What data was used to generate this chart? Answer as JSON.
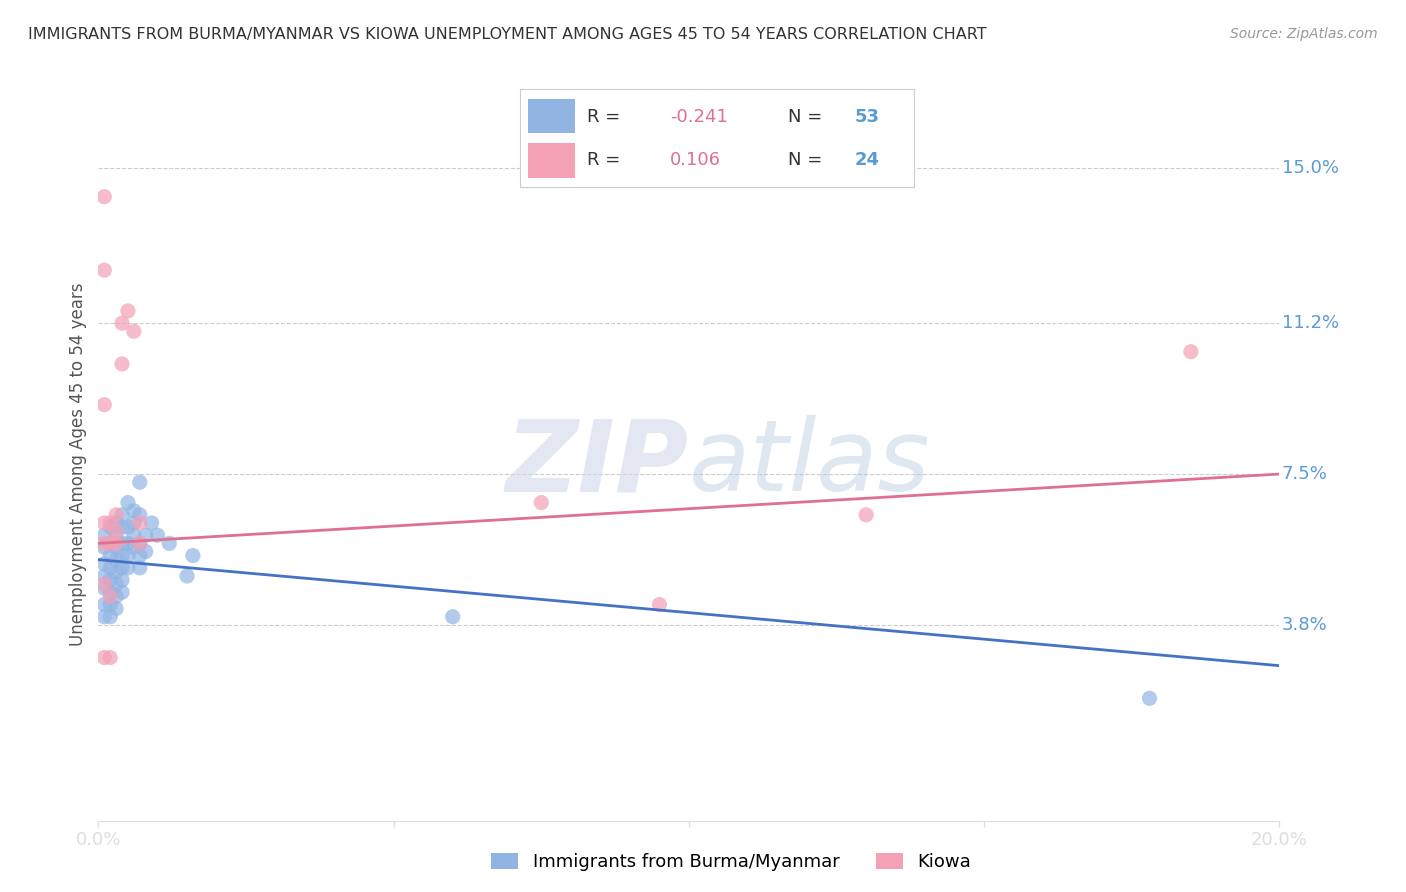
{
  "title": "IMMIGRANTS FROM BURMA/MYANMAR VS KIOWA UNEMPLOYMENT AMONG AGES 45 TO 54 YEARS CORRELATION CHART",
  "source": "Source: ZipAtlas.com",
  "ylabel": "Unemployment Among Ages 45 to 54 years",
  "xlim": [
    0,
    0.2
  ],
  "ylim": [
    -0.01,
    0.165
  ],
  "ytick_right_vals": [
    0.038,
    0.075,
    0.112,
    0.15
  ],
  "ytick_right_labels": [
    "3.8%",
    "7.5%",
    "11.2%",
    "15.0%"
  ],
  "series1_color": "#92b4e3",
  "series2_color": "#f4a0b5",
  "series1_name": "Immigrants from Burma/Myanmar",
  "series2_name": "Kiowa",
  "watermark_zip": "ZIP",
  "watermark_atlas": "atlas",
  "blue_line_x": [
    0.0,
    0.2
  ],
  "blue_line_y": [
    0.054,
    0.028
  ],
  "pink_line_x": [
    0.0,
    0.2
  ],
  "pink_line_y": [
    0.058,
    0.075
  ],
  "series1_points": [
    [
      0.001,
      0.06
    ],
    [
      0.001,
      0.057
    ],
    [
      0.001,
      0.053
    ],
    [
      0.001,
      0.05
    ],
    [
      0.001,
      0.047
    ],
    [
      0.001,
      0.043
    ],
    [
      0.001,
      0.04
    ],
    [
      0.002,
      0.062
    ],
    [
      0.002,
      0.058
    ],
    [
      0.002,
      0.055
    ],
    [
      0.002,
      0.052
    ],
    [
      0.002,
      0.049
    ],
    [
      0.002,
      0.046
    ],
    [
      0.002,
      0.043
    ],
    [
      0.002,
      0.04
    ],
    [
      0.003,
      0.063
    ],
    [
      0.003,
      0.06
    ],
    [
      0.003,
      0.057
    ],
    [
      0.003,
      0.054
    ],
    [
      0.003,
      0.051
    ],
    [
      0.003,
      0.048
    ],
    [
      0.003,
      0.045
    ],
    [
      0.003,
      0.042
    ],
    [
      0.004,
      0.065
    ],
    [
      0.004,
      0.062
    ],
    [
      0.004,
      0.058
    ],
    [
      0.004,
      0.055
    ],
    [
      0.004,
      0.052
    ],
    [
      0.004,
      0.049
    ],
    [
      0.004,
      0.046
    ],
    [
      0.005,
      0.068
    ],
    [
      0.005,
      0.062
    ],
    [
      0.005,
      0.058
    ],
    [
      0.005,
      0.055
    ],
    [
      0.005,
      0.052
    ],
    [
      0.006,
      0.066
    ],
    [
      0.006,
      0.063
    ],
    [
      0.006,
      0.06
    ],
    [
      0.006,
      0.057
    ],
    [
      0.007,
      0.073
    ],
    [
      0.007,
      0.065
    ],
    [
      0.007,
      0.058
    ],
    [
      0.007,
      0.055
    ],
    [
      0.007,
      0.052
    ],
    [
      0.008,
      0.06
    ],
    [
      0.008,
      0.056
    ],
    [
      0.009,
      0.063
    ],
    [
      0.01,
      0.06
    ],
    [
      0.012,
      0.058
    ],
    [
      0.015,
      0.05
    ],
    [
      0.016,
      0.055
    ],
    [
      0.06,
      0.04
    ],
    [
      0.178,
      0.02
    ]
  ],
  "series2_points": [
    [
      0.001,
      0.143
    ],
    [
      0.001,
      0.125
    ],
    [
      0.001,
      0.092
    ],
    [
      0.001,
      0.063
    ],
    [
      0.001,
      0.058
    ],
    [
      0.001,
      0.048
    ],
    [
      0.001,
      0.03
    ],
    [
      0.002,
      0.063
    ],
    [
      0.002,
      0.058
    ],
    [
      0.002,
      0.045
    ],
    [
      0.002,
      0.03
    ],
    [
      0.003,
      0.065
    ],
    [
      0.003,
      0.061
    ],
    [
      0.003,
      0.058
    ],
    [
      0.004,
      0.112
    ],
    [
      0.004,
      0.102
    ],
    [
      0.005,
      0.115
    ],
    [
      0.006,
      0.11
    ],
    [
      0.007,
      0.063
    ],
    [
      0.007,
      0.058
    ],
    [
      0.075,
      0.068
    ],
    [
      0.095,
      0.043
    ],
    [
      0.13,
      0.065
    ],
    [
      0.185,
      0.105
    ]
  ],
  "grid_color": "#cccccc",
  "background_color": "#ffffff",
  "title_color": "#333333",
  "tick_label_color": "#5B9BD5"
}
